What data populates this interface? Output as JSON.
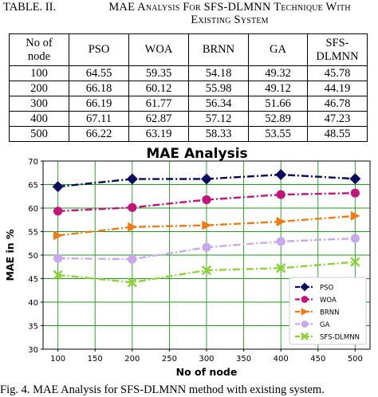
{
  "table": {
    "label": "TABLE. II.",
    "title_line1": "MAE Analysis For SFS-DLMNN Technique With",
    "title_line2": "Existing System",
    "header_col1_line1": "No of",
    "header_col1_line2": "node",
    "headers": [
      "PSO",
      "WOA",
      "BRNN",
      "GA"
    ],
    "header_last_line1": "SFS-",
    "header_last_line2": "DLMNN",
    "rows": [
      [
        "100",
        "64.55",
        "59.35",
        "54.18",
        "49.32",
        "45.78"
      ],
      [
        "200",
        "66.18",
        "60.12",
        "55.98",
        "49.12",
        "44.19"
      ],
      [
        "300",
        "66.19",
        "61.77",
        "56.34",
        "51.66",
        "46.78"
      ],
      [
        "400",
        "67.11",
        "62.87",
        "57.12",
        "52.89",
        "47.23"
      ],
      [
        "500",
        "66.22",
        "63.19",
        "58.33",
        "53.55",
        "48.55"
      ]
    ]
  },
  "chart_data": {
    "type": "line",
    "title": "MAE Analysis",
    "xlabel": "No of node",
    "ylabel": "MAE in %",
    "x": [
      100,
      200,
      300,
      400,
      500
    ],
    "xlim": [
      80,
      520
    ],
    "ylim": [
      30,
      70
    ],
    "xticks": [
      100,
      150,
      200,
      250,
      300,
      350,
      400,
      450,
      500
    ],
    "yticks": [
      30,
      35,
      40,
      45,
      50,
      55,
      60,
      65,
      70
    ],
    "grid": true,
    "legend_position": "bottom-right",
    "series": [
      {
        "name": "PSO",
        "values": [
          64.55,
          66.18,
          66.19,
          67.11,
          66.22
        ],
        "color": "#0b0b5e",
        "marker": "diamond"
      },
      {
        "name": "WOA",
        "values": [
          59.35,
          60.12,
          61.77,
          62.87,
          63.19
        ],
        "color": "#c0157a",
        "marker": "circle"
      },
      {
        "name": "BRNN",
        "values": [
          54.18,
          55.98,
          56.34,
          57.12,
          58.33
        ],
        "color": "#f07a14",
        "marker": "triangle-right"
      },
      {
        "name": "GA",
        "values": [
          49.32,
          49.12,
          51.66,
          52.89,
          53.55
        ],
        "color": "#c9a8ec",
        "marker": "circle"
      },
      {
        "name": "SFS-DLMNN",
        "values": [
          45.78,
          44.19,
          46.78,
          47.23,
          48.55
        ],
        "color": "#8ed23a",
        "marker": "x"
      }
    ]
  },
  "figure_caption": "Fig. 4.   MAE Analysis for SFS-DLMNN method with existing system."
}
